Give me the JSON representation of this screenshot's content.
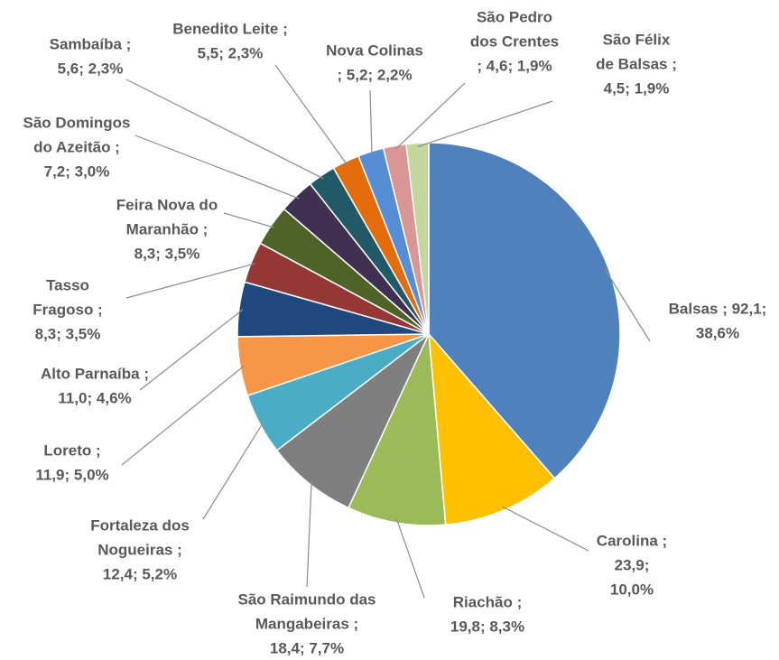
{
  "chart_data": {
    "type": "pie",
    "values": [
      92.1,
      23.9,
      19.8,
      18.4,
      12.4,
      11.9,
      11.0,
      8.3,
      8.3,
      7.2,
      5.6,
      5.5,
      5.2,
      4.6,
      4.5
    ],
    "value_labels": [
      [
        "Balsas ; 92,1;",
        "38,6%"
      ],
      [
        "Carolina ;",
        "23,9;",
        "10,0%"
      ],
      [
        "Riachão ;",
        "19,8; 8,3%"
      ],
      [
        "São Raimundo das",
        "Mangabeiras ;",
        "18,4; 7,7%"
      ],
      [
        "Fortaleza dos",
        "Nogueiras ;",
        "12,4; 5,2%"
      ],
      [
        "Loreto ;",
        "11,9; 5,0%"
      ],
      [
        "Alto Parnaíba ;",
        "11,0; 4,6%"
      ],
      [
        "Tasso",
        "Fragoso ;",
        "8,3; 3,5%"
      ],
      [
        "Feira Nova do",
        "Maranhão ;",
        "8,3; 3,5%"
      ],
      [
        "São Domingos",
        "do Azeitão ;",
        "7,2; 3,0%"
      ],
      [
        "Sambaíba ;",
        "5,6; 2,3%"
      ],
      [
        "Benedito Leite ;",
        "5,5; 2,3%"
      ],
      [
        "Nova Colinas",
        "; 5,2; 2,2%"
      ],
      [
        "São Pedro",
        "dos Crentes",
        "; 4,6; 1,9%"
      ],
      [
        "São Félix",
        "de Balsas ;",
        "4,5; 1,9%"
      ]
    ],
    "colors": [
      "#4f81bd",
      "#ffc000",
      "#9bbb59",
      "#7f7f7f",
      "#4bacc6",
      "#f79646",
      "#1f497d",
      "#953735",
      "#4f6228",
      "#403152",
      "#215967",
      "#e46c0a",
      "#558ed5",
      "#d99694",
      "#c3d69b"
    ]
  }
}
